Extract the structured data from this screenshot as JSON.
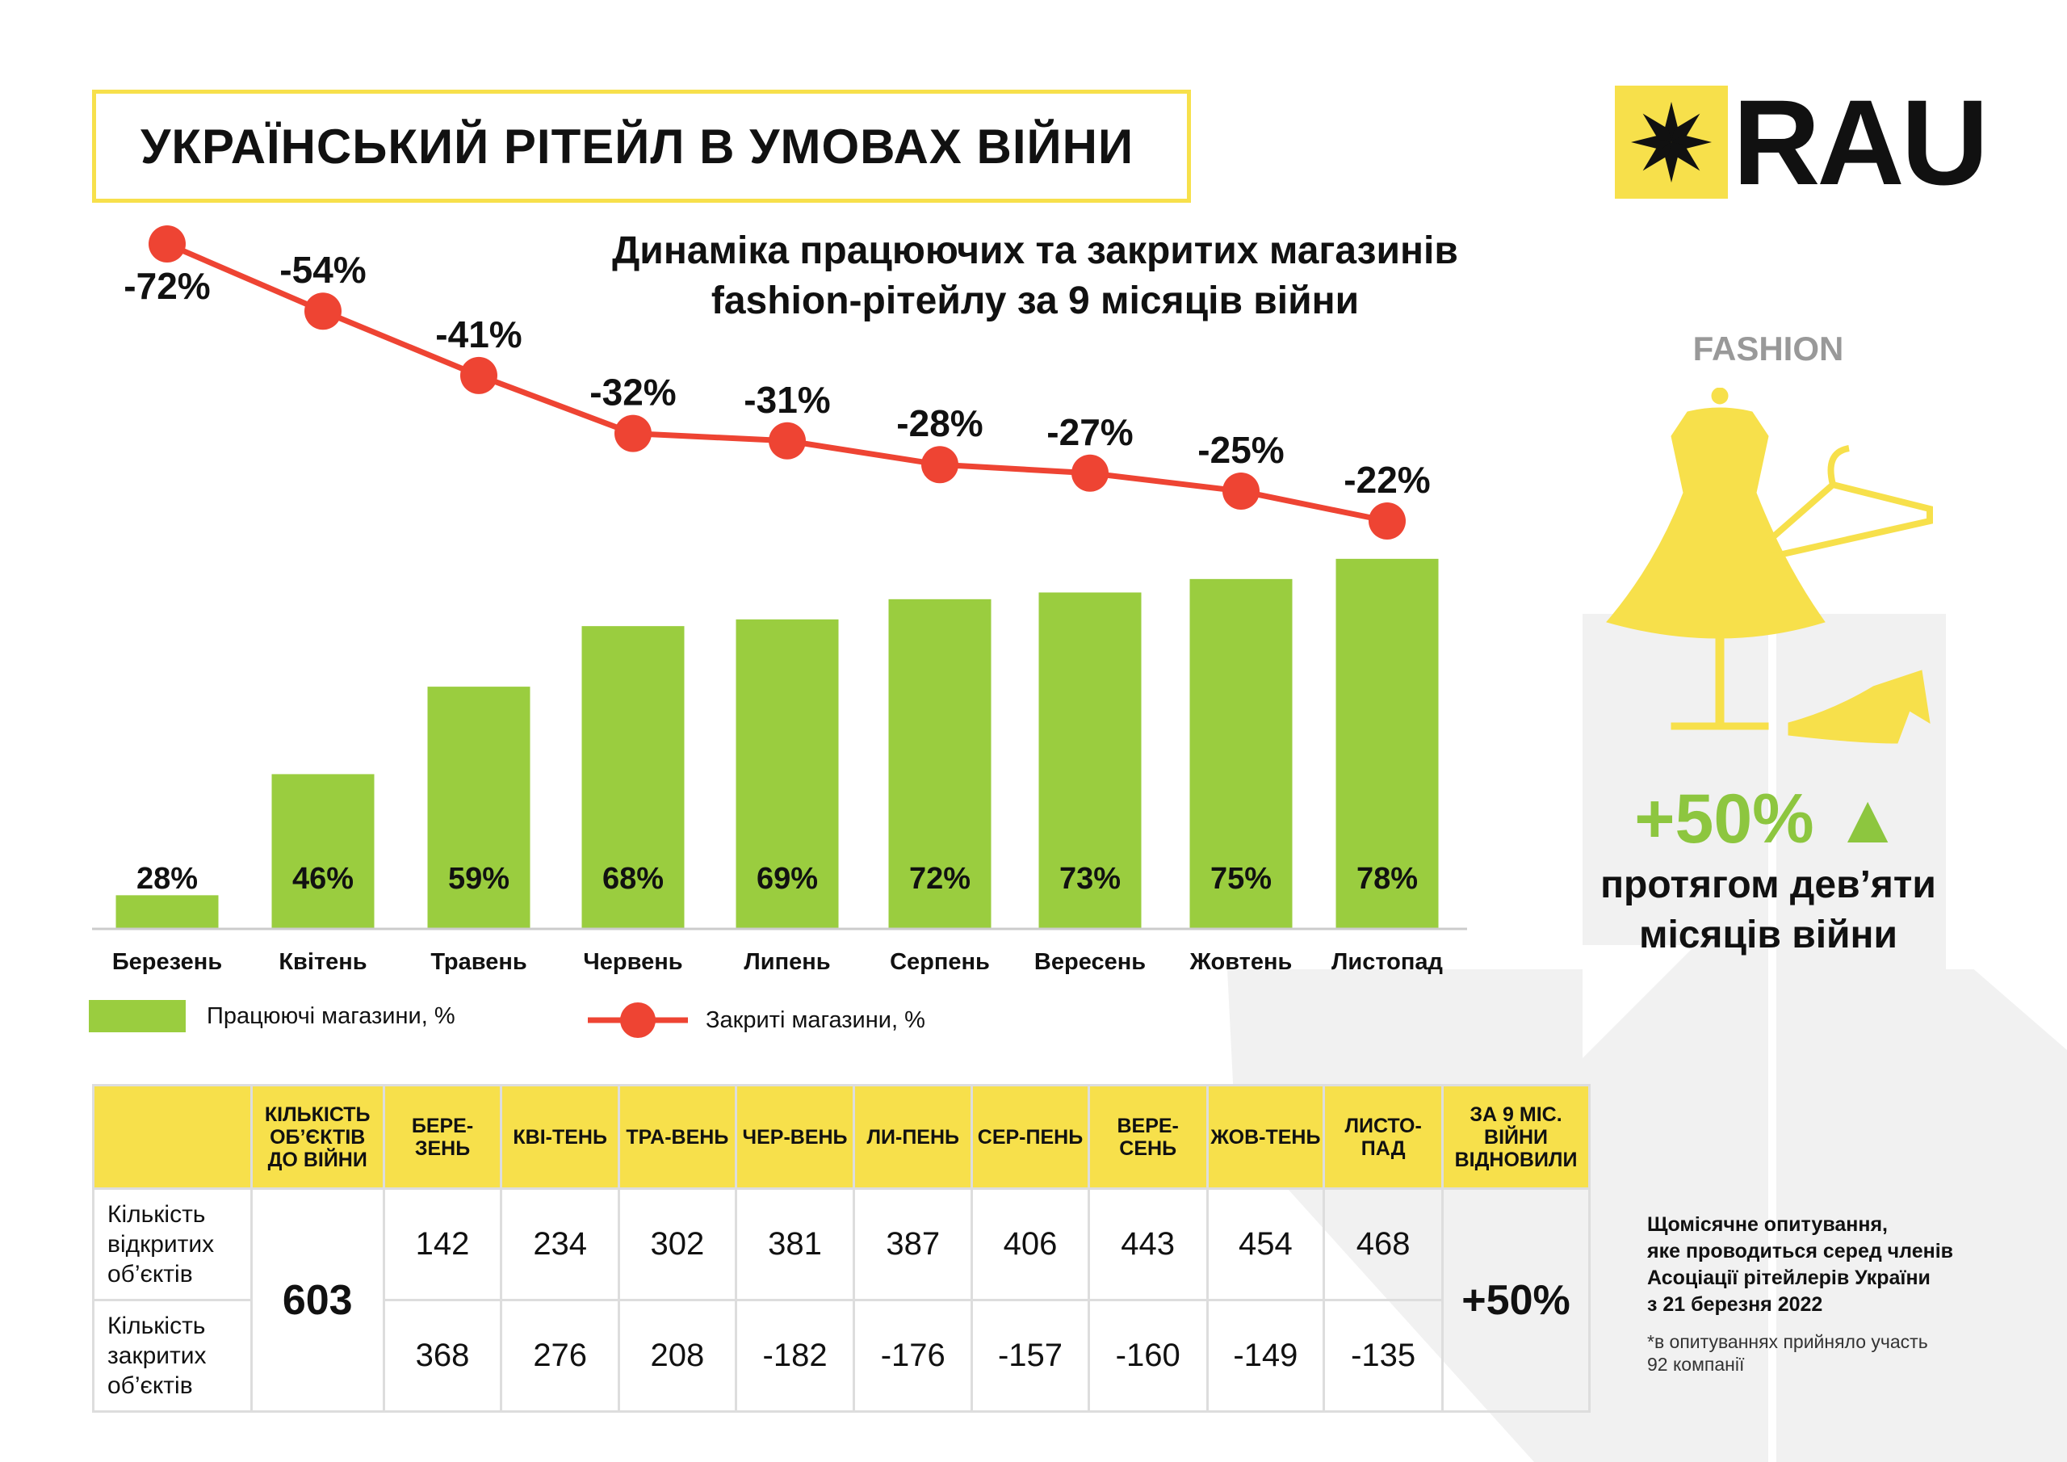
{
  "title": "УКРАЇНСЬКИЙ РІТЕЙЛ В УМОВАХ ВІЙНИ",
  "logo": {
    "text": "RAU",
    "brand_color": "#f7e04b"
  },
  "side_panel": {
    "category": "FASHION",
    "growth": "+50%",
    "growth_caption_line1": "протягом дев’яти",
    "growth_caption_line2": "місяців війни",
    "icon": "dress-hanger-shoe-icon"
  },
  "chart_data": {
    "type": "bar+line",
    "title_line1": "Динаміка працюючих та закритих магазинів",
    "title_line2": "fashion-рітейлу за 9 місяців війни",
    "categories": [
      "Березень",
      "Квітень",
      "Травень",
      "Червень",
      "Липень",
      "Серпень",
      "Вересень",
      "Жовтень",
      "Листопад"
    ],
    "series": [
      {
        "name": "Працюючі магазини, %",
        "type": "bar",
        "color": "#9acd3f",
        "values": [
          28,
          46,
          59,
          68,
          69,
          72,
          73,
          75,
          78
        ],
        "labels": [
          "28%",
          "46%",
          "59%",
          "68%",
          "69%",
          "72%",
          "73%",
          "75%",
          "78%"
        ]
      },
      {
        "name": "Закриті магазини, %",
        "type": "line",
        "color": "#ee4433",
        "values": [
          -72,
          -54,
          -41,
          -32,
          -31,
          -28,
          -27,
          -25,
          -22
        ],
        "labels": [
          "-72%",
          "-54%",
          "-41%",
          "-32%",
          "-31%",
          "-28%",
          "-27%",
          "-25%",
          "-22%"
        ]
      }
    ],
    "grid": false,
    "legend": "bottom-left"
  },
  "table": {
    "headers": [
      "",
      "КІЛЬКІСТЬ ОБ’ЄКТІВ ДО ВІЙНИ",
      "БЕРЕ-ЗЕНЬ",
      "КВІ-ТЕНЬ",
      "ТРА-ВЕНЬ",
      "ЧЕР-ВЕНЬ",
      "ЛИ-ПЕНЬ",
      "СЕР-ПЕНЬ",
      "ВЕРЕ-СЕНЬ",
      "ЖОВ-ТЕНЬ",
      "ЛИСТО-ПАД",
      "ЗА 9 МІС. ВІЙНИ ВІДНОВИЛИ"
    ],
    "row_labels": [
      "Кількість відкритих об’єктів",
      "Кількість закритих об’єктів"
    ],
    "prewar": "603",
    "open": [
      "142",
      "234",
      "302",
      "381",
      "387",
      "406",
      "443",
      "454",
      "468"
    ],
    "closed": [
      "368",
      "276",
      "208",
      "-182",
      "-176",
      "-157",
      "-160",
      "-149",
      "-135"
    ],
    "restored": "+50%"
  },
  "note": {
    "line1": "Щомісячне опитування,",
    "line2": "яке проводиться серед членів",
    "line3": "Асоціації рітейлерів України",
    "line4": "з 21 березня 2022",
    "footnote1": "*в опитуваннях прийняло участь",
    "footnote2": "92 компанії"
  }
}
